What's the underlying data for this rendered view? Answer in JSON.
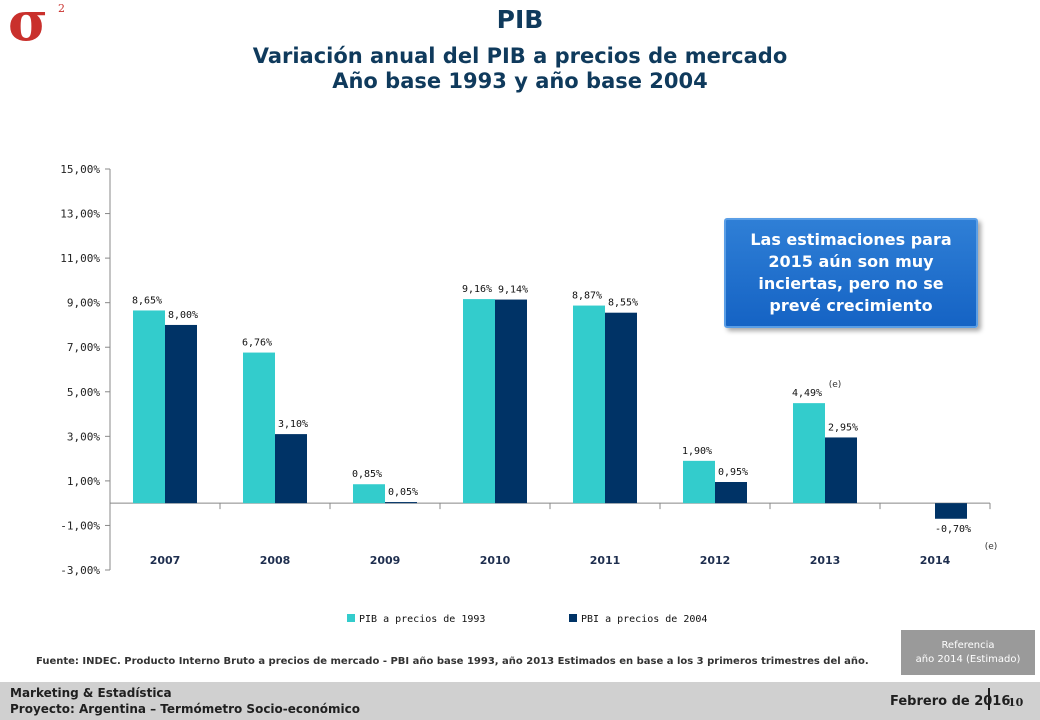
{
  "logo": {
    "symbol": "σ",
    "superscript": "2"
  },
  "header": {
    "title": "PIB",
    "subtitle_line1": "Variación anual del PIB a precios de mercado",
    "subtitle_line2": "Año base 1993 y año base 2004"
  },
  "callout": {
    "text": "Las estimaciones para 2015 aún son muy inciertas, pero no se prevé crecimiento"
  },
  "reference_box": {
    "line1": "Referencia",
    "line2": "año 2014 (Estimado)"
  },
  "source": "Fuente: INDEC. Producto Interno Bruto a precios de mercado - PBI año base 1993, año 2013 Estimados en base a los 3 primeros trimestres del año.",
  "footer": {
    "department": "Marketing & Estadística",
    "project": "Proyecto: Argentina – Termómetro Socio-económico",
    "date": "Febrero de 2016",
    "page": "10"
  },
  "chart_data": {
    "type": "bar",
    "categories": [
      "2007",
      "2008",
      "2009",
      "2010",
      "2011",
      "2012",
      "2013",
      "2014"
    ],
    "series": [
      {
        "name": "PIB a precios de 1993",
        "color": "#33cccc",
        "values": [
          8.65,
          6.76,
          0.85,
          9.16,
          8.87,
          1.9,
          4.49,
          null
        ],
        "labels": [
          "8,65%",
          "6,76%",
          "0,85%",
          "9,16%",
          "8,87%",
          "1,90%",
          "4,49%",
          ""
        ]
      },
      {
        "name": "PBI a precios de 2004",
        "color": "#003366",
        "values": [
          8.0,
          3.1,
          0.05,
          9.14,
          8.55,
          0.95,
          2.95,
          -0.7
        ],
        "labels": [
          "8,00%",
          "3,10%",
          "0,05%",
          "9,14%",
          "8,55%",
          "0,95%",
          "2,95%",
          "-0,70%"
        ]
      }
    ],
    "yticks": [
      -3,
      -1,
      1,
      3,
      5,
      7,
      9,
      11,
      13,
      15
    ],
    "ytick_labels": [
      "-3,00%",
      "-1,00%",
      "1,00%",
      "3,00%",
      "5,00%",
      "7,00%",
      "9,00%",
      "11,00%",
      "13,00%",
      "15,00%"
    ],
    "ylim": [
      -3,
      15
    ],
    "annotations": [
      {
        "text": "(e)",
        "category": "2013"
      },
      {
        "text": "(e)",
        "category": "2014"
      }
    ],
    "legend_position": "bottom",
    "grid": false
  }
}
